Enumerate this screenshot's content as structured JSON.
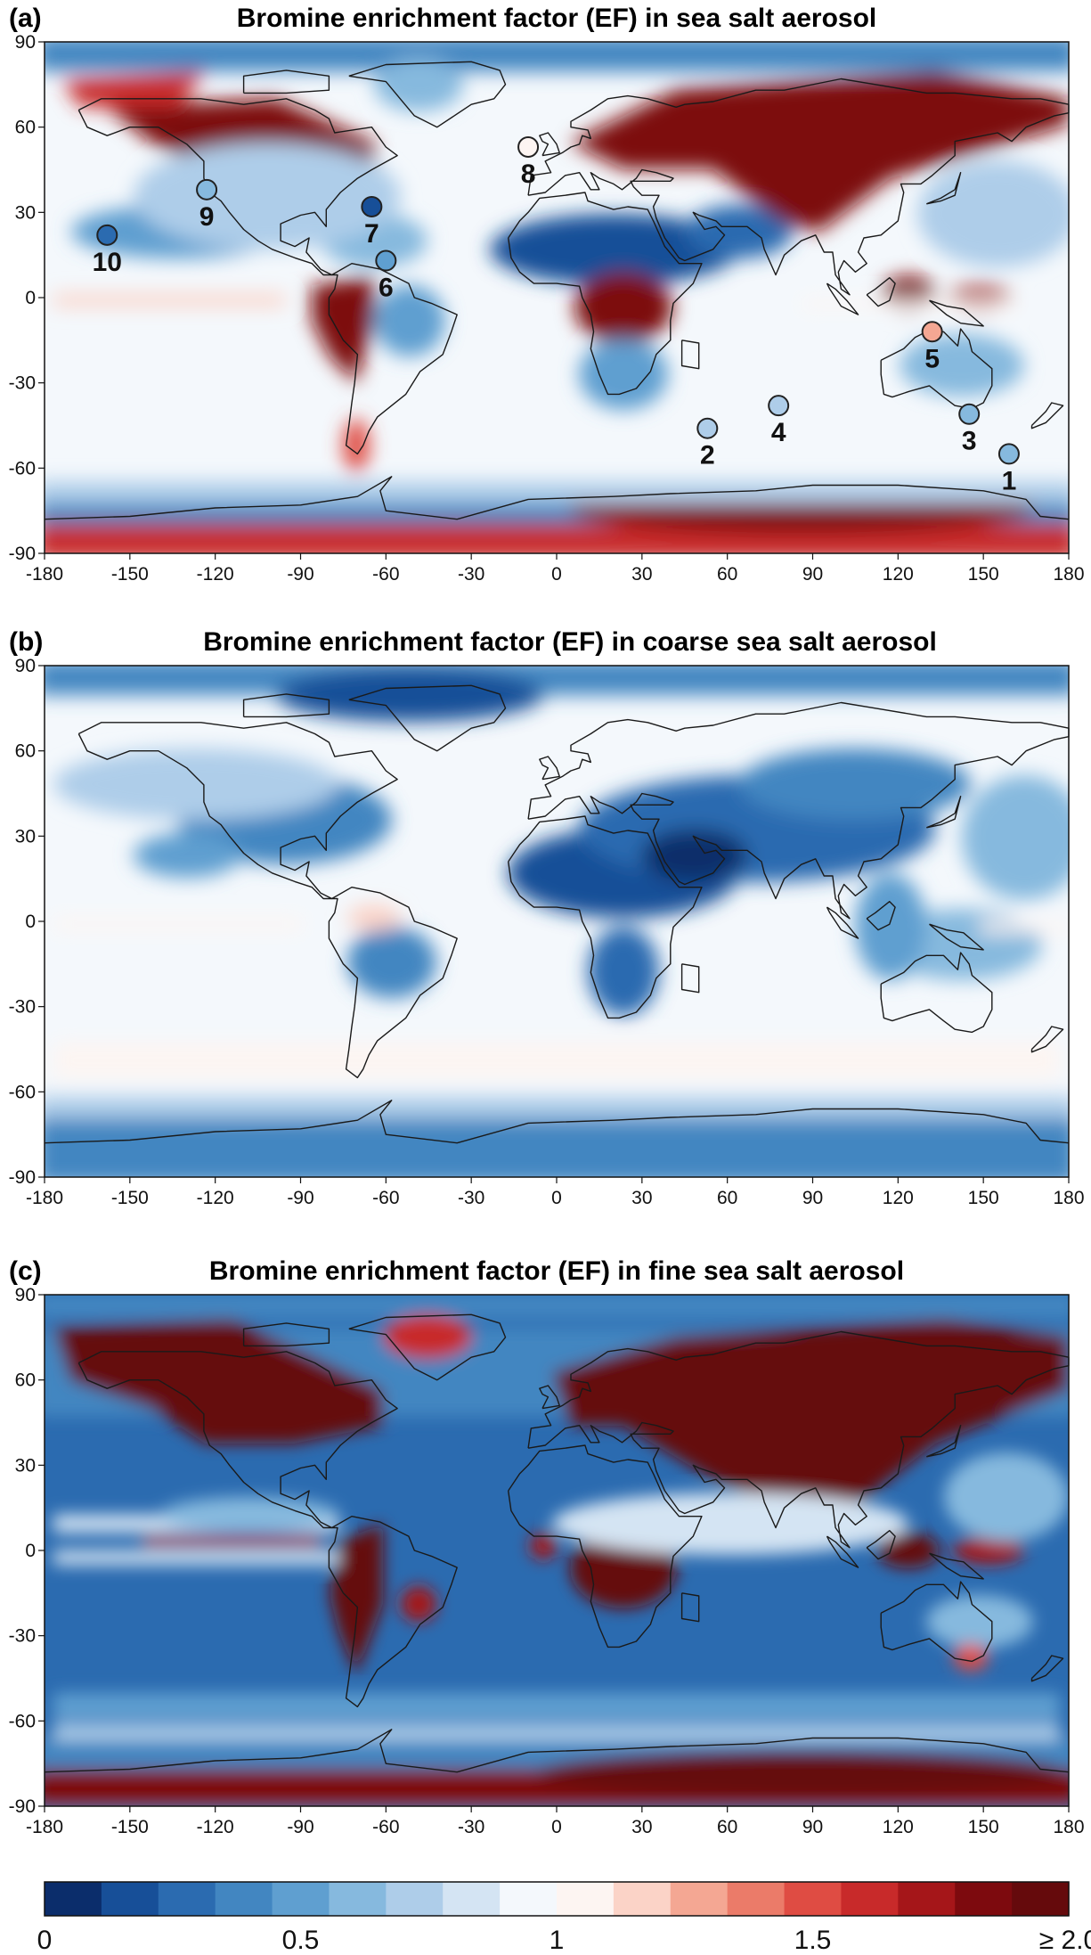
{
  "figure": {
    "panels": [
      {
        "id": "a",
        "tag": "(a)",
        "title": "Bromine enrichment factor (EF) in sea salt aerosol",
        "variant": "total",
        "sites": [
          {
            "label": "1",
            "lon": 159,
            "lat": -55,
            "ef": 0.62
          },
          {
            "label": "2",
            "lon": 53,
            "lat": -46,
            "ef": 0.68
          },
          {
            "label": "3",
            "lon": 145,
            "lat": -41,
            "ef": 0.58
          },
          {
            "label": "4",
            "lon": 78,
            "lat": -38,
            "ef": 0.7
          },
          {
            "label": "5",
            "lon": 132,
            "lat": -12,
            "ef": 1.3
          },
          {
            "label": "6",
            "lon": -60,
            "lat": 13,
            "ef": 0.45
          },
          {
            "label": "7",
            "lon": -65,
            "lat": 32,
            "ef": 0.15
          },
          {
            "label": "8",
            "lon": -10,
            "lat": 53,
            "ef": 1.0
          },
          {
            "label": "9",
            "lon": -123,
            "lat": 38,
            "ef": 0.6
          },
          {
            "label": "10",
            "lon": -158,
            "lat": 22,
            "ef": 0.3
          }
        ]
      },
      {
        "id": "b",
        "tag": "(b)",
        "title": "Bromine enrichment factor (EF) in coarse sea salt aerosol",
        "variant": "coarse",
        "sites": []
      },
      {
        "id": "c",
        "tag": "(c)",
        "title": "Bromine enrichment factor (EF) in fine sea salt aerosol",
        "variant": "fine",
        "sites": []
      }
    ],
    "axes": {
      "lon_range": [
        -180,
        180
      ],
      "lat_range": [
        -90,
        90
      ],
      "x_ticks": [
        "-180",
        "-150",
        "-120",
        "-90",
        "-60",
        "-30",
        "0",
        "30",
        "60",
        "90",
        "120",
        "150",
        "180"
      ],
      "y_ticks": [
        "90",
        "60",
        "30",
        "0",
        "-30",
        "-60",
        "-90"
      ]
    },
    "colorbar": {
      "min": 0,
      "max": 2.0,
      "tick_values": [
        0,
        0.5,
        1,
        1.5,
        2.0
      ],
      "tick_labels": [
        "0",
        "0.5",
        "1",
        "1.5",
        "≥ 2.0"
      ],
      "colors": [
        "#0b2d6b",
        "#174f98",
        "#2b6bb0",
        "#4286c1",
        "#5f9fd0",
        "#86b9de",
        "#aecde9",
        "#d4e4f3",
        "#f4f8fc",
        "#fdf5f2",
        "#fbd3c7",
        "#f4a793",
        "#eb7b69",
        "#df4c43",
        "#c82a2a",
        "#a51619",
        "#7d0a0e",
        "#650a0c"
      ]
    }
  }
}
